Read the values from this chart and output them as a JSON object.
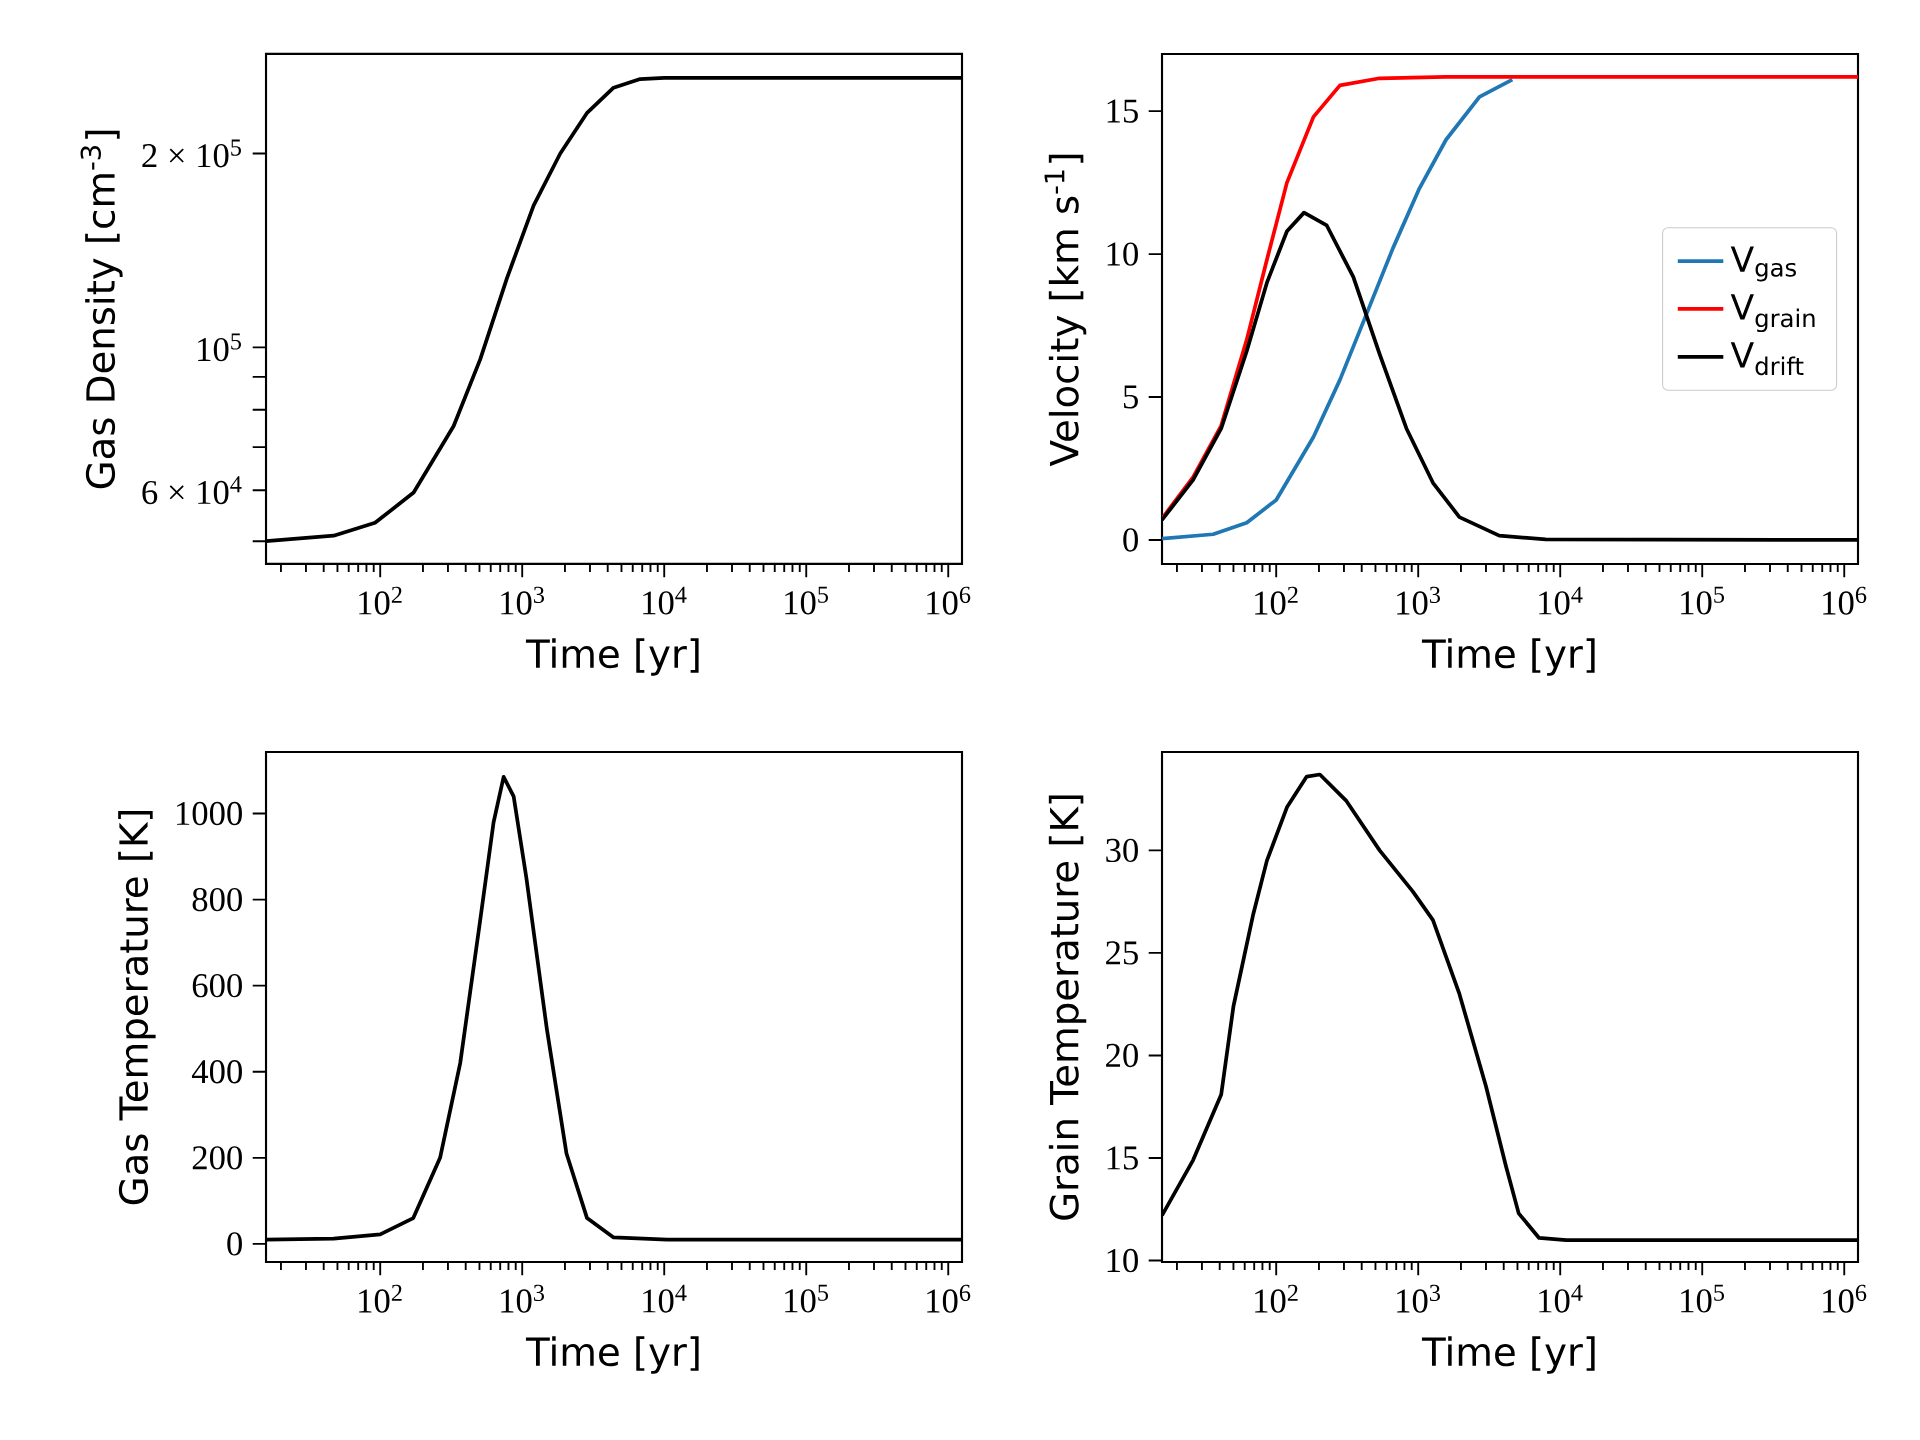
{
  "chart_data": [
    {
      "type": "line",
      "xlabel": "Time [yr]",
      "ylabel": "Gas Density [cm$^{-3}$]",
      "log": "xy",
      "xlim": [
        15.7,
        1250000
      ],
      "xticks": [
        {
          "value": 100,
          "label": "10$^{2}$"
        },
        {
          "value": 1000,
          "label": "10$^{3}$"
        },
        {
          "value": 10000,
          "label": "10$^{4}$"
        },
        {
          "value": 100000,
          "label": "10$^{5}$"
        },
        {
          "value": 1000000,
          "label": "10$^{6}$"
        }
      ],
      "ylim": [
        46100,
        285500
      ],
      "yticks": [
        {
          "value": 50000,
          "label": null
        },
        {
          "value": 60000,
          "label": "6 × 10$^{4}$"
        },
        {
          "value": 70000,
          "label": null
        },
        {
          "value": 80000,
          "label": null
        },
        {
          "value": 90000,
          "label": null
        },
        {
          "value": 100000,
          "label": "10$^{5}$"
        },
        {
          "value": 200000,
          "label": "2 × 10$^{5}$"
        }
      ],
      "series": [
        {
          "color": "#000000",
          "x": [
            15.7,
            47,
            92,
            172,
            329,
            506,
            780,
            1202,
            1853,
            2850,
            4400,
            6770,
            10000,
            1250000
          ],
          "values": [
            50000,
            51000,
            53400,
            59500,
            75500,
            95800,
            128000,
            166000,
            200000,
            231000,
            253000,
            261000,
            262000,
            262000
          ]
        }
      ]
    },
    {
      "type": "line",
      "xlabel": "Time [yr]",
      "ylabel": "Velocity [km s$^{-1}$]",
      "log": "x",
      "legend": "right",
      "xlim": [
        15.7,
        1250000
      ],
      "xticks": [
        {
          "value": 100,
          "label": "10$^{2}$"
        },
        {
          "value": 1000,
          "label": "10$^{3}$"
        },
        {
          "value": 10000,
          "label": "10$^{4}$"
        },
        {
          "value": 100000,
          "label": "10$^{5}$"
        },
        {
          "value": 1000000,
          "label": "10$^{6}$"
        }
      ],
      "ylim": [
        -0.84,
        17.0
      ],
      "yticks": [
        0,
        5,
        10,
        15
      ],
      "series": [
        {
          "name": "V$_{gas}$",
          "color": "#1f77b4",
          "x": [
            15.7,
            36,
            62,
            100,
            183,
            281,
            432,
            663,
            1020,
            1570,
            2700,
            4600
          ],
          "values": [
            0.05,
            0.2,
            0.6,
            1.4,
            3.6,
            5.6,
            7.9,
            10.2,
            12.3,
            14.0,
            15.5,
            16.1
          ]
        },
        {
          "name": "V$_{grain}$",
          "color": "#ff0000",
          "x": [
            15.7,
            26,
            41,
            62,
            86,
            119,
            183,
            281,
            535,
            1570,
            1250000
          ],
          "values": [
            0.75,
            2.2,
            4.0,
            7.0,
            9.8,
            12.5,
            14.8,
            15.9,
            16.15,
            16.2,
            16.2
          ]
        },
        {
          "name": "V$_{drift}$",
          "color": "#000000",
          "x": [
            15.7,
            26,
            41,
            62,
            86,
            119,
            157,
            227,
            349,
            535,
            826,
            1270,
            1950,
            3720,
            7900,
            1250000
          ],
          "values": [
            0.7,
            2.1,
            3.9,
            6.6,
            9.0,
            10.8,
            11.45,
            11.0,
            9.2,
            6.5,
            3.9,
            2.0,
            0.8,
            0.15,
            0.02,
            0
          ]
        }
      ]
    },
    {
      "type": "line",
      "xlabel": "Time [yr]",
      "ylabel": "Gas Temperature [K]",
      "log": "x",
      "xlim": [
        15.7,
        1250000
      ],
      "xticks": [
        {
          "value": 100,
          "label": "10$^{2}$"
        },
        {
          "value": 1000,
          "label": "10$^{3}$"
        },
        {
          "value": 10000,
          "label": "10$^{4}$"
        },
        {
          "value": 100000,
          "label": "10$^{5}$"
        },
        {
          "value": 1000000,
          "label": "10$^{6}$"
        }
      ],
      "ylim": [
        -42,
        1143
      ],
      "yticks": [
        0,
        200,
        400,
        600,
        800,
        1000
      ],
      "series": [
        {
          "color": "#000000",
          "x": [
            15.7,
            47,
            100,
            171,
            264,
            366,
            505,
            629,
            740,
            870,
            1070,
            1490,
            2050,
            2860,
            4400,
            10500,
            1250000
          ],
          "values": [
            10,
            12,
            22,
            60,
            200,
            420,
            750,
            980,
            1085,
            1040,
            850,
            500,
            210,
            60,
            15,
            10,
            10
          ]
        }
      ]
    },
    {
      "type": "line",
      "xlabel": "Time [yr]",
      "ylabel": "Grain Temperature [K]",
      "log": "x",
      "xlim": [
        15.7,
        1250000
      ],
      "xticks": [
        {
          "value": 100,
          "label": "10$^{2}$"
        },
        {
          "value": 1000,
          "label": "10$^{3}$"
        },
        {
          "value": 10000,
          "label": "10$^{4}$"
        },
        {
          "value": 100000,
          "label": "10$^{5}$"
        },
        {
          "value": 1000000,
          "label": "10$^{6}$"
        }
      ],
      "ylim": [
        9.93,
        34.8
      ],
      "yticks": [
        10,
        15,
        20,
        25,
        30
      ],
      "series": [
        {
          "color": "#000000",
          "x": [
            15.7,
            26,
            41,
            50,
            69,
            86,
            119,
            164,
            203,
            313,
            535,
            915,
            1270,
            1950,
            3000,
            4150,
            5100,
            7100,
            11000,
            1250000
          ],
          "values": [
            12.2,
            14.9,
            18.1,
            22.4,
            26.9,
            29.5,
            32.1,
            33.6,
            33.7,
            32.4,
            30.0,
            28.0,
            26.6,
            23.0,
            18.5,
            14.6,
            12.3,
            11.1,
            11.0,
            11.0
          ]
        }
      ]
    }
  ]
}
